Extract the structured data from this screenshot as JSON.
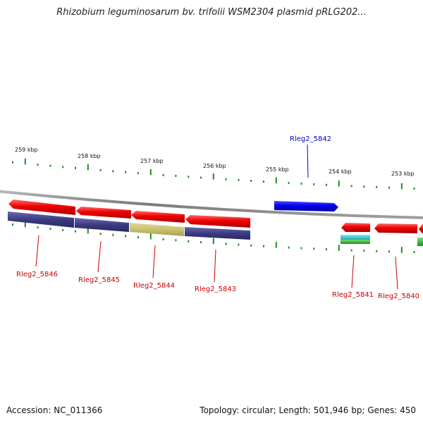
{
  "title": "Rhizobium leguminosarum bv. trifolii WSM2304 plasmid pRLG202...",
  "footer": {
    "accession": "Accession: NC_011366",
    "summary": "Topology: circular; Length: 501,946 bp; Genes: 450"
  },
  "colors": {
    "backbone": "#8a8a8a",
    "tick": "#1f8a1f",
    "gene_red": "#e00000",
    "gene_blue": "#0000e0",
    "cog_navy": "#3c3a80",
    "cog_olive": "#c8c072",
    "cog_cyan": "#30c8c8",
    "cog_green": "#22b322",
    "label_red": "#cc0000",
    "label_blue": "#0000cc"
  },
  "scale_labels": [
    "259 kbp",
    "258 kbp",
    "257 kbp",
    "256 kbp",
    "255 kbp",
    "254 kbp",
    "253 kbp"
  ],
  "gene_labels": [
    {
      "text": "Rleg2_5846",
      "color": "red"
    },
    {
      "text": "Rleg2_5845",
      "color": "red"
    },
    {
      "text": "Rleg2_5844",
      "color": "red"
    },
    {
      "text": "Rleg2_5843",
      "color": "red"
    },
    {
      "text": "Rleg2_5842",
      "color": "blue"
    },
    {
      "text": "Rleg2_5841",
      "color": "red"
    },
    {
      "text": "Rleg2_5840",
      "color": "red"
    }
  ]
}
